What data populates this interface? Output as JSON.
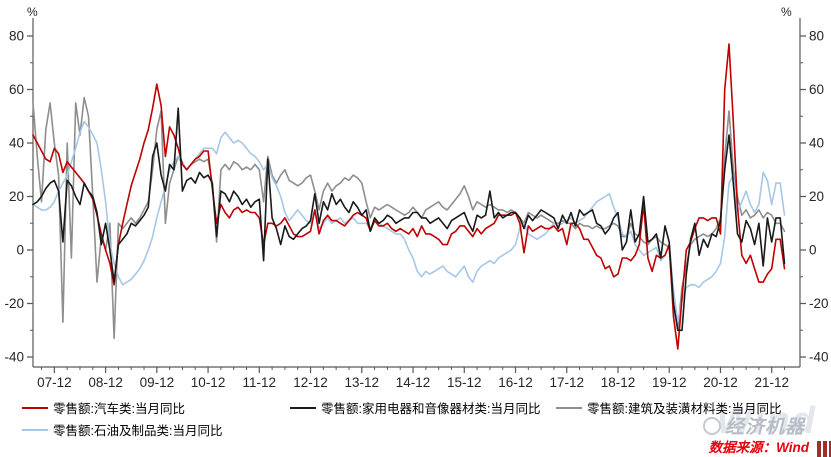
{
  "axes": {
    "unit_left": "%",
    "unit_right": "%"
  },
  "watermark": {
    "brand": "经济机器",
    "wind": "Wind"
  },
  "source_note": "数据来源：Wind",
  "chart_data": {
    "type": "line",
    "title": "",
    "xlabel": "",
    "ylabel": "%",
    "x_start": "2007-07",
    "x_end": "2022-03",
    "x_frequency": "monthly",
    "x_tick_labels": [
      "07-12",
      "08-12",
      "09-12",
      "10-12",
      "11-12",
      "12-12",
      "13-12",
      "14-12",
      "15-12",
      "16-12",
      "17-12",
      "18-12",
      "19-12",
      "20-12",
      "21-12"
    ],
    "ylim": [
      -40,
      80
    ],
    "y_ticks": [
      80,
      60,
      40,
      20,
      0,
      -20,
      -40
    ],
    "grid": false,
    "legend_position": "bottom-left",
    "series": [
      {
        "name": "零售额:汽车类:当月同比",
        "color": "#c00000",
        "values": [
          43,
          40,
          37,
          34,
          33,
          38,
          36,
          29,
          33,
          31,
          29,
          27,
          25,
          22,
          19,
          13,
          6,
          0,
          -5,
          -13,
          2,
          10,
          17,
          24,
          29,
          34,
          40,
          45,
          53,
          62,
          54,
          35,
          46,
          43,
          38,
          32,
          30,
          32,
          34,
          35,
          37,
          37,
          23,
          10,
          17,
          14,
          12,
          15,
          16,
          14,
          15,
          14,
          14,
          12,
          2,
          10,
          10,
          9,
          10,
          12,
          9,
          6,
          5,
          5,
          6,
          7,
          15,
          6,
          11,
          13,
          11,
          11,
          10,
          9,
          11,
          13,
          14,
          13,
          12,
          7,
          11,
          9,
          9,
          10,
          8,
          7,
          8,
          7,
          6,
          8,
          5,
          9,
          6,
          6,
          5,
          4,
          2,
          2,
          6,
          7,
          9,
          9,
          7,
          5,
          8,
          6,
          8,
          9,
          10,
          13,
          13,
          13,
          13,
          14,
          10,
          -1,
          9,
          7,
          8,
          9,
          8,
          8,
          9,
          7,
          8,
          2,
          10,
          10,
          8,
          4,
          4,
          1,
          -2,
          -3,
          -7,
          -6,
          -10,
          -9,
          -3,
          -3,
          -4,
          -2,
          2,
          17,
          -3,
          -8,
          -2,
          -3,
          -2,
          2,
          -25,
          -37,
          -18,
          0,
          3,
          8,
          12,
          12,
          11,
          12,
          12,
          6,
          60,
          77,
          48,
          16,
          -2,
          -5,
          -2,
          -7,
          -12,
          -12,
          -9,
          -7,
          4,
          4,
          -7
        ]
      },
      {
        "name": "零售额:家用电器和音像器材类:当月同比",
        "color": "#1a1a1a",
        "values": [
          17,
          18,
          20,
          23,
          25,
          26,
          22,
          3,
          26,
          24,
          20,
          17,
          25,
          22,
          20,
          14,
          2,
          10,
          0,
          -12,
          2,
          4,
          6,
          10,
          9,
          11,
          13,
          16,
          35,
          40,
          28,
          22,
          32,
          30,
          53,
          22,
          26,
          27,
          25,
          29,
          27,
          28,
          25,
          5,
          22,
          21,
          18,
          22,
          20,
          17,
          19,
          16,
          18,
          19,
          -4,
          34,
          12,
          8,
          2,
          9,
          5,
          4,
          6,
          8,
          9,
          11,
          21,
          10,
          18,
          15,
          21,
          17,
          19,
          16,
          14,
          18,
          16,
          13,
          15,
          7,
          12,
          10,
          11,
          13,
          12,
          10,
          11,
          12,
          12,
          14,
          14,
          12,
          12,
          10,
          11,
          12,
          10,
          8,
          11,
          12,
          13,
          14,
          10,
          7,
          13,
          12,
          13,
          22,
          12,
          14,
          12,
          13,
          14,
          14,
          12,
          8,
          13,
          11,
          13,
          15,
          14,
          13,
          12,
          8,
          13,
          10,
          14,
          9,
          15,
          13,
          14,
          15,
          10,
          9,
          6,
          8,
          12,
          14,
          0,
          3,
          15,
          3,
          6,
          20,
          3,
          4,
          6,
          -3,
          9,
          3,
          -20,
          -30,
          -30,
          -9,
          4,
          10,
          -2,
          4,
          1,
          6,
          5,
          11,
          30,
          43,
          25,
          6,
          3,
          11,
          8,
          2,
          10,
          -6,
          12,
          3,
          12,
          12,
          -5
        ]
      },
      {
        "name": "零售额:建筑及装潢材料类:当月同比",
        "color": "#8e8e8e",
        "values": [
          55,
          35,
          18,
          45,
          55,
          40,
          28,
          -27,
          40,
          -3,
          55,
          43,
          57,
          50,
          20,
          -12,
          5,
          0,
          10,
          -33,
          10,
          8,
          10,
          12,
          10,
          12,
          15,
          18,
          30,
          45,
          52,
          10,
          25,
          30,
          35,
          32,
          30,
          32,
          33,
          34,
          33,
          34,
          25,
          3,
          30,
          32,
          30,
          33,
          32,
          30,
          31,
          30,
          32,
          30,
          18,
          35,
          28,
          25,
          28,
          30,
          26,
          25,
          24,
          25,
          27,
          28,
          22,
          15,
          22,
          25,
          22,
          24,
          25,
          27,
          26,
          28,
          27,
          25,
          18,
          12,
          16,
          15,
          16,
          17,
          16,
          15,
          14,
          13,
          14,
          16,
          14,
          12,
          15,
          16,
          17,
          18,
          16,
          15,
          17,
          19,
          21,
          24,
          20,
          15,
          18,
          17,
          16,
          17,
          16,
          15,
          15,
          14,
          15,
          14,
          12,
          10,
          14,
          13,
          12,
          13,
          12,
          11,
          10,
          10,
          11,
          10,
          10,
          8,
          10,
          9,
          9,
          8,
          9,
          8,
          8,
          9,
          10,
          9,
          5,
          5,
          10,
          6,
          5,
          3,
          2,
          4,
          5,
          3,
          2,
          1,
          -20,
          -30,
          -14,
          -6,
          2,
          4,
          5,
          6,
          5,
          6,
          8,
          12,
          35,
          52,
          30,
          20,
          13,
          15,
          12,
          13,
          15,
          12,
          14,
          13,
          10,
          10,
          7
        ]
      },
      {
        "name": "零售额:石油及制品类:当月同比",
        "color": "#a6c7e7",
        "values": [
          17,
          16,
          15,
          15,
          16,
          18,
          22,
          25,
          28,
          33,
          38,
          44,
          48,
          46,
          43,
          40,
          30,
          18,
          2,
          -5,
          -10,
          -13,
          -12,
          -11,
          -9,
          -7,
          -4,
          0,
          5,
          12,
          18,
          24,
          30,
          33,
          35,
          33,
          30,
          32,
          34,
          36,
          38,
          38,
          38,
          36,
          42,
          44,
          42,
          40,
          41,
          40,
          38,
          36,
          35,
          33,
          30,
          32,
          27,
          24,
          20,
          14,
          11,
          13,
          15,
          13,
          11,
          10,
          15,
          8,
          10,
          12,
          10,
          11,
          12,
          10,
          11,
          12,
          10,
          10,
          10,
          8,
          11,
          10,
          9,
          8,
          7,
          6,
          6,
          4,
          0,
          -3,
          -8,
          -10,
          -8,
          -9,
          -8,
          -7,
          -6,
          -8,
          -9,
          -10,
          -8,
          -6,
          -10,
          -12,
          -8,
          -6,
          -5,
          -4,
          -5,
          -3,
          -2,
          -1,
          0,
          2,
          8,
          10,
          6,
          5,
          4,
          5,
          6,
          8,
          10,
          9,
          10,
          11,
          12,
          10,
          11,
          12,
          14,
          16,
          18,
          19,
          20,
          21,
          16,
          12,
          6,
          5,
          7,
          2,
          0,
          -2,
          -1,
          0,
          1,
          -4,
          -2,
          2,
          -15,
          -27,
          -19,
          -14,
          -13,
          -13,
          -14,
          -12,
          -11,
          -10,
          -8,
          -5,
          5,
          25,
          28,
          14,
          18,
          22,
          17,
          14,
          17,
          29,
          26,
          17,
          25,
          25,
          13
        ]
      }
    ]
  }
}
